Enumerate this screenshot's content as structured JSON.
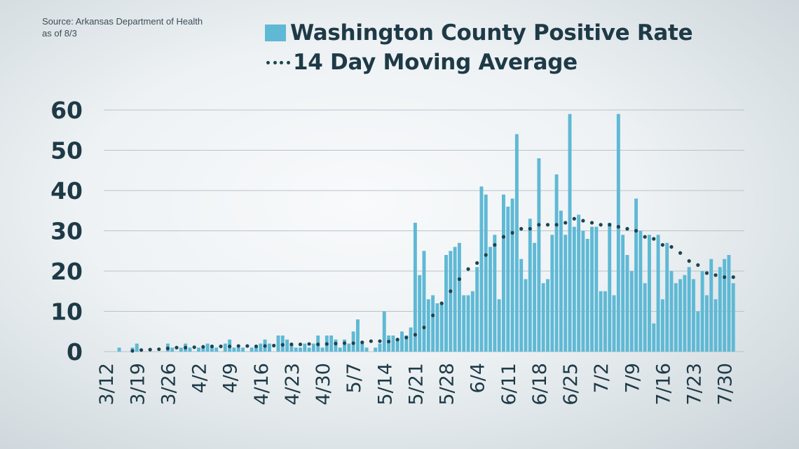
{
  "source": {
    "line1": "Source: Arkansas Department of Health",
    "line2": "as of 8/3"
  },
  "legend": {
    "bars_label": "Washington County Positive Rate",
    "line_label": "14 Day Moving Average"
  },
  "colors": {
    "bar": "#5fb9d5",
    "dots": "#1d4450",
    "axis_text": "#1e3a47",
    "grid": "#b9c3c9"
  },
  "chart_data": {
    "type": "bar",
    "x_start": "3/12",
    "days": 145,
    "ylim": [
      0,
      60
    ],
    "yticks": [
      0,
      10,
      20,
      30,
      40,
      50,
      60
    ],
    "xticks": [
      {
        "day": 0,
        "label": "3/12"
      },
      {
        "day": 7,
        "label": "3/19"
      },
      {
        "day": 14,
        "label": "3/26"
      },
      {
        "day": 21,
        "label": "4/2"
      },
      {
        "day": 28,
        "label": "4/9"
      },
      {
        "day": 35,
        "label": "4/16"
      },
      {
        "day": 42,
        "label": "4/23"
      },
      {
        "day": 49,
        "label": "4/30"
      },
      {
        "day": 56,
        "label": "5/7"
      },
      {
        "day": 63,
        "label": "5/14"
      },
      {
        "day": 70,
        "label": "5/21"
      },
      {
        "day": 77,
        "label": "5/28"
      },
      {
        "day": 84,
        "label": "6/4"
      },
      {
        "day": 91,
        "label": "6/11"
      },
      {
        "day": 98,
        "label": "6/18"
      },
      {
        "day": 105,
        "label": "6/25"
      },
      {
        "day": 112,
        "label": "7/2"
      },
      {
        "day": 119,
        "label": "7/9"
      },
      {
        "day": 126,
        "label": "7/16"
      },
      {
        "day": 133,
        "label": "7/23"
      },
      {
        "day": 140,
        "label": "7/30"
      }
    ],
    "series": [
      {
        "kind": "bar",
        "values": [
          0,
          0,
          0,
          1,
          0,
          0,
          1,
          2,
          0,
          0,
          0,
          0,
          0,
          0,
          2,
          1,
          0,
          1,
          2,
          1,
          0,
          1,
          1,
          2,
          1,
          1,
          0,
          2,
          3,
          1,
          1,
          1,
          0,
          1,
          1,
          2,
          3,
          2,
          0,
          4,
          4,
          3,
          2,
          1,
          1,
          2,
          1,
          2,
          4,
          1,
          4,
          4,
          3,
          1,
          3,
          2,
          5,
          8,
          2,
          1,
          0,
          1,
          2,
          10,
          4,
          4,
          3,
          5,
          4,
          6,
          32,
          19,
          25,
          13,
          14,
          12,
          12,
          24,
          25,
          26,
          27,
          14,
          14,
          15,
          21,
          41,
          39,
          26,
          29,
          13,
          39,
          36,
          38,
          54,
          23,
          18,
          33,
          27,
          48,
          17,
          18,
          29,
          44,
          35,
          29,
          59,
          31,
          34,
          30,
          28,
          31,
          31,
          15,
          15,
          32,
          14,
          59,
          29,
          24,
          20,
          38,
          30,
          17,
          29,
          7,
          29,
          13,
          27,
          20,
          17,
          18,
          19,
          21,
          18,
          10,
          20,
          14,
          23,
          13,
          21,
          23,
          24,
          17
        ],
        "dots_x": [
          6,
          8,
          10,
          12,
          14,
          16,
          18,
          20,
          22,
          24,
          26,
          28,
          30,
          32,
          34,
          36,
          38,
          40,
          42,
          44,
          46,
          48,
          50,
          52,
          54,
          56,
          58,
          60,
          62,
          64,
          66,
          68,
          70,
          72,
          74,
          76,
          78,
          80,
          82,
          84,
          86,
          88,
          90,
          92,
          94,
          96,
          98,
          100,
          102,
          104,
          106,
          108,
          110,
          112,
          114,
          116,
          118,
          120,
          122,
          124,
          126,
          128,
          130,
          132,
          134,
          136,
          138,
          140,
          142
        ],
        "dots_y": [
          0.2,
          0.4,
          0.5,
          0.6,
          0.8,
          1.0,
          1.0,
          1.1,
          1.2,
          1.3,
          1.3,
          1.3,
          1.4,
          1.4,
          1.3,
          1.4,
          1.5,
          1.7,
          1.8,
          1.8,
          1.9,
          1.8,
          1.9,
          2.0,
          2.1,
          2.1,
          2.3,
          2.6,
          2.6,
          2.5,
          3.0,
          3.5,
          4.2,
          6.0,
          9.0,
          12.0,
          15.0,
          18.0,
          20.5,
          22.0,
          24.0,
          26.5,
          28.5,
          29.5,
          30.5,
          30.5,
          31.5,
          31.5,
          31.5,
          32.0,
          33.0,
          32.5,
          32.0,
          31.5,
          31.5,
          31.0,
          30.5,
          30.0,
          28.5,
          28.0,
          26.5,
          26.0,
          24.5,
          22.5,
          21.5,
          19.5,
          19.0,
          18.5,
          18.5
        ]
      }
    ]
  }
}
